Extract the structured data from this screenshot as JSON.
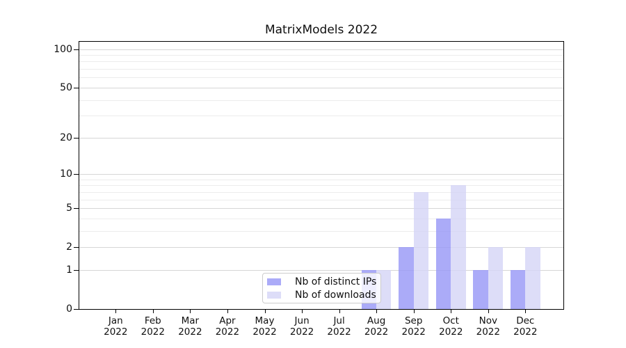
{
  "title": "MatrixModels 2022",
  "chart_data": {
    "type": "bar",
    "title": "MatrixModels 2022",
    "categories": [
      {
        "month": "Jan",
        "year": "2022"
      },
      {
        "month": "Feb",
        "year": "2022"
      },
      {
        "month": "Mar",
        "year": "2022"
      },
      {
        "month": "Apr",
        "year": "2022"
      },
      {
        "month": "May",
        "year": "2022"
      },
      {
        "month": "Jun",
        "year": "2022"
      },
      {
        "month": "Jul",
        "year": "2022"
      },
      {
        "month": "Aug",
        "year": "2022"
      },
      {
        "month": "Sep",
        "year": "2022"
      },
      {
        "month": "Oct",
        "year": "2022"
      },
      {
        "month": "Nov",
        "year": "2022"
      },
      {
        "month": "Dec",
        "year": "2022"
      }
    ],
    "series": [
      {
        "name": "Nb of distinct IPs",
        "color": "#9696f6",
        "alpha": 0.8,
        "values": [
          0,
          0,
          0,
          0,
          0,
          0,
          0,
          1,
          2,
          4,
          1,
          1
        ]
      },
      {
        "name": "Nb of downloads",
        "color": "#d4d4f6",
        "alpha": 0.8,
        "values": [
          0,
          0,
          0,
          0,
          0,
          0,
          0,
          1,
          7,
          8,
          2,
          2
        ]
      }
    ],
    "y_axis": {
      "scale": "log1p",
      "major_ticks": [
        0,
        1,
        2,
        5,
        10,
        20,
        50,
        100
      ],
      "minor_ticks": [
        3,
        4,
        6,
        7,
        8,
        9,
        30,
        40,
        60,
        70,
        80,
        90
      ],
      "ylim": [
        0,
        114
      ]
    },
    "grid": {
      "major_color": "#d6d6d6",
      "minor_color": "#ececec",
      "orientation": "horizontal"
    },
    "legend": {
      "position": "lower center-left",
      "frame": true
    }
  }
}
